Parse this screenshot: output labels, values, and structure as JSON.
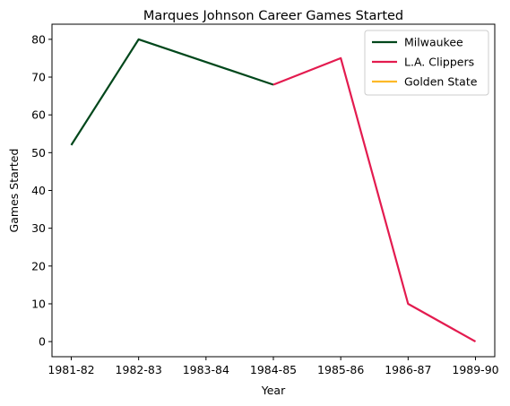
{
  "chart_data": {
    "type": "line",
    "title": "Marques Johnson Career Games Started",
    "xlabel": "Year",
    "ylabel": "Games Started",
    "categories": [
      "1981-82",
      "1982-83",
      "1983-84",
      "1984-85",
      "1985-86",
      "1986-87",
      "1989-90"
    ],
    "ylim": [
      -4,
      84
    ],
    "yticks": [
      0,
      10,
      20,
      30,
      40,
      50,
      60,
      70,
      80
    ],
    "grid": false,
    "legend_position": "top-right",
    "series": [
      {
        "name": "Milwaukee",
        "color": "#00471B",
        "points": [
          {
            "x": "1981-82",
            "y": 52
          },
          {
            "x": "1982-83",
            "y": 80
          },
          {
            "x": "1984-85",
            "y": 68
          }
        ]
      },
      {
        "name": "L.A. Clippers",
        "color": "#E31B4F",
        "points": [
          {
            "x": "1984-85",
            "y": 68
          },
          {
            "x": "1985-86",
            "y": 75
          },
          {
            "x": "1986-87",
            "y": 10
          },
          {
            "x": "1989-90",
            "y": 0
          }
        ]
      },
      {
        "name": "Golden State",
        "color": "#FDB927",
        "points": [
          {
            "x": "1989-90",
            "y": 0
          }
        ]
      }
    ]
  }
}
